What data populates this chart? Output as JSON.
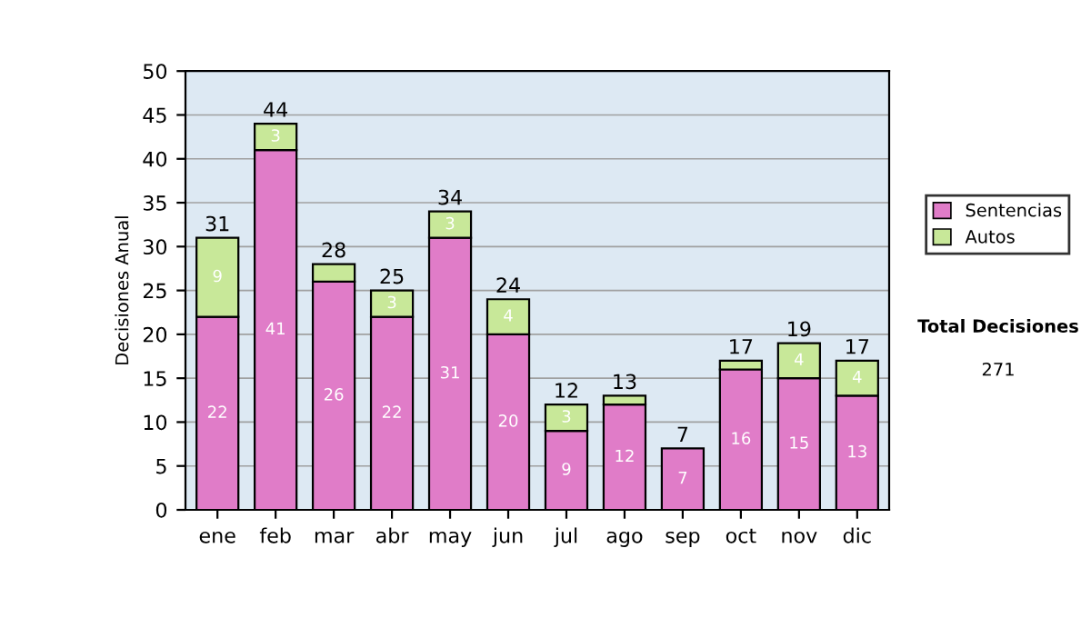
{
  "chart_data": {
    "type": "bar",
    "stacked": true,
    "ylabel": "Decisiones Anual",
    "categories": [
      "ene",
      "feb",
      "mar",
      "abr",
      "may",
      "jun",
      "jul",
      "ago",
      "sep",
      "oct",
      "nov",
      "dic"
    ],
    "series": [
      {
        "name": "Sentencias",
        "color": "#e07cc8",
        "values": [
          22,
          41,
          26,
          22,
          31,
          20,
          9,
          12,
          7,
          16,
          15,
          13
        ],
        "value_labels": [
          "22",
          "41",
          "26",
          "22",
          "31",
          "20",
          "9",
          "12",
          "7",
          "16",
          "15",
          "13"
        ]
      },
      {
        "name": "Autos",
        "color": "#c8e899",
        "values": [
          9,
          3,
          2,
          3,
          3,
          4,
          3,
          1,
          null,
          1,
          4,
          4
        ],
        "value_labels": [
          "9",
          "3",
          null,
          "3",
          "3",
          "4",
          "3",
          null,
          null,
          null,
          "4",
          "4"
        ]
      }
    ],
    "totals": [
      "31",
      "44",
      "28",
      "25",
      "34",
      "24",
      "12",
      "13",
      "7",
      "17",
      "19",
      "17"
    ],
    "ylim": [
      0,
      50
    ],
    "yticks": [
      0,
      5,
      10,
      15,
      20,
      25,
      30,
      35,
      40,
      45,
      50
    ],
    "grid": "y",
    "legend": "right",
    "annotations": [
      "Total Decisiones",
      "271"
    ]
  }
}
